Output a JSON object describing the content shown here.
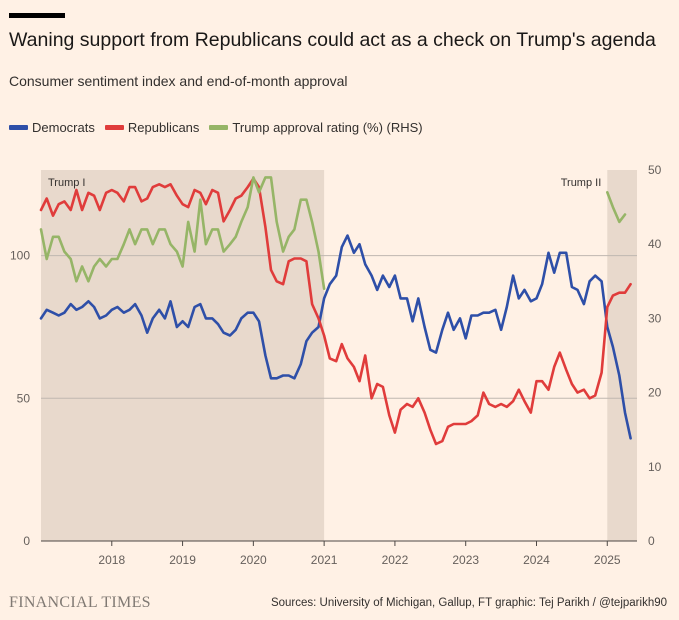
{
  "header": {
    "title": "Waning support from Republicans could act as a check on Trump's agenda",
    "subtitle": "Consumer sentiment index and end-of-month approval"
  },
  "footer": {
    "brand": "FINANCIAL TIMES",
    "source": "Sources: University of Michigan, Gallup, FT graphic: Tej Parikh / @tejparikh90"
  },
  "chart_data": {
    "type": "line",
    "title": "Waning support from Republicans could act as a check on Trump's agenda",
    "subtitle": "Consumer sentiment index and end-of-month approval",
    "xlim": [
      2017.0,
      2025.42
    ],
    "x_ticks": [
      2018,
      2019,
      2020,
      2021,
      2022,
      2023,
      2024,
      2025
    ],
    "x_tick_labels": [
      "2018",
      "2019",
      "2020",
      "2021",
      "2022",
      "2023",
      "2024",
      "2025"
    ],
    "y_left": {
      "lim": [
        0,
        130
      ],
      "ticks": [
        0,
        50,
        100
      ],
      "tick_labels": [
        "0",
        "50",
        "100"
      ]
    },
    "y_right": {
      "lim": [
        0,
        50
      ],
      "ticks": [
        0,
        10,
        20,
        30,
        40,
        50
      ],
      "tick_labels": [
        "0",
        "10",
        "20",
        "30",
        "40",
        "50"
      ]
    },
    "legend": {
      "position": "top-left"
    },
    "grid": true,
    "shaded_periods": [
      {
        "label": "Trump I",
        "start": 2017.0,
        "end": 2021.0
      },
      {
        "label": "Trump II",
        "start": 2025.0,
        "end": 2025.42
      }
    ],
    "colors": {
      "Democrats": "#2e4fa8",
      "Republicans": "#e03c3b",
      "Trump approval rating (%) (RHS)": "#96b567",
      "shade": "#e8d9cc",
      "grid": "#bfb7b0"
    },
    "series": [
      {
        "name": "Democrats",
        "axis": "left",
        "points": [
          [
            2017.0,
            78
          ],
          [
            2017.08,
            81
          ],
          [
            2017.17,
            80
          ],
          [
            2017.25,
            79
          ],
          [
            2017.33,
            80
          ],
          [
            2017.42,
            83
          ],
          [
            2017.5,
            81
          ],
          [
            2017.58,
            82
          ],
          [
            2017.67,
            84
          ],
          [
            2017.75,
            82
          ],
          [
            2017.83,
            78
          ],
          [
            2017.92,
            79
          ],
          [
            2018.0,
            81
          ],
          [
            2018.08,
            82
          ],
          [
            2018.17,
            80
          ],
          [
            2018.25,
            81
          ],
          [
            2018.33,
            83
          ],
          [
            2018.42,
            79
          ],
          [
            2018.5,
            73
          ],
          [
            2018.58,
            78
          ],
          [
            2018.67,
            81
          ],
          [
            2018.75,
            78
          ],
          [
            2018.83,
            84
          ],
          [
            2018.92,
            75
          ],
          [
            2019.0,
            77
          ],
          [
            2019.08,
            75
          ],
          [
            2019.17,
            82
          ],
          [
            2019.25,
            83
          ],
          [
            2019.33,
            78
          ],
          [
            2019.42,
            78
          ],
          [
            2019.5,
            76
          ],
          [
            2019.58,
            73
          ],
          [
            2019.67,
            72
          ],
          [
            2019.75,
            74
          ],
          [
            2019.83,
            78
          ],
          [
            2019.92,
            80
          ],
          [
            2020.0,
            80
          ],
          [
            2020.08,
            77
          ],
          [
            2020.17,
            65
          ],
          [
            2020.25,
            57
          ],
          [
            2020.33,
            57
          ],
          [
            2020.42,
            58
          ],
          [
            2020.5,
            58
          ],
          [
            2020.58,
            57
          ],
          [
            2020.67,
            62
          ],
          [
            2020.75,
            70
          ],
          [
            2020.83,
            73
          ],
          [
            2020.92,
            75
          ],
          [
            2021.0,
            85
          ],
          [
            2021.08,
            90
          ],
          [
            2021.17,
            93
          ],
          [
            2021.25,
            103
          ],
          [
            2021.33,
            107
          ],
          [
            2021.42,
            101
          ],
          [
            2021.5,
            104
          ],
          [
            2021.58,
            97
          ],
          [
            2021.67,
            93
          ],
          [
            2021.75,
            88
          ],
          [
            2021.83,
            93
          ],
          [
            2021.92,
            89
          ],
          [
            2022.0,
            93
          ],
          [
            2022.08,
            85
          ],
          [
            2022.17,
            85
          ],
          [
            2022.25,
            77
          ],
          [
            2022.33,
            85
          ],
          [
            2022.42,
            75
          ],
          [
            2022.5,
            67
          ],
          [
            2022.58,
            66
          ],
          [
            2022.67,
            74
          ],
          [
            2022.75,
            80
          ],
          [
            2022.83,
            74
          ],
          [
            2022.92,
            78
          ],
          [
            2023.0,
            71
          ],
          [
            2023.08,
            79
          ],
          [
            2023.17,
            79
          ],
          [
            2023.25,
            80
          ],
          [
            2023.33,
            80
          ],
          [
            2023.42,
            81
          ],
          [
            2023.5,
            74
          ],
          [
            2023.58,
            82
          ],
          [
            2023.67,
            93
          ],
          [
            2023.75,
            85
          ],
          [
            2023.83,
            88
          ],
          [
            2023.92,
            84
          ],
          [
            2024.0,
            85
          ],
          [
            2024.08,
            90
          ],
          [
            2024.17,
            101
          ],
          [
            2024.25,
            94
          ],
          [
            2024.33,
            101
          ],
          [
            2024.42,
            101
          ],
          [
            2024.5,
            89
          ],
          [
            2024.58,
            88
          ],
          [
            2024.67,
            83
          ],
          [
            2024.75,
            91
          ],
          [
            2024.83,
            93
          ],
          [
            2024.92,
            91
          ],
          [
            2025.0,
            75
          ],
          [
            2025.08,
            68
          ],
          [
            2025.17,
            58
          ],
          [
            2025.25,
            45
          ],
          [
            2025.33,
            36
          ]
        ]
      },
      {
        "name": "Republicans",
        "axis": "left",
        "points": [
          [
            2017.0,
            116
          ],
          [
            2017.08,
            120
          ],
          [
            2017.17,
            114
          ],
          [
            2017.25,
            118
          ],
          [
            2017.33,
            119
          ],
          [
            2017.42,
            116
          ],
          [
            2017.5,
            123
          ],
          [
            2017.58,
            116
          ],
          [
            2017.67,
            122
          ],
          [
            2017.75,
            121
          ],
          [
            2017.83,
            116
          ],
          [
            2017.92,
            122
          ],
          [
            2018.0,
            123
          ],
          [
            2018.08,
            122
          ],
          [
            2018.17,
            119
          ],
          [
            2018.25,
            124
          ],
          [
            2018.33,
            124
          ],
          [
            2018.42,
            119
          ],
          [
            2018.5,
            120
          ],
          [
            2018.58,
            124
          ],
          [
            2018.67,
            125
          ],
          [
            2018.75,
            124
          ],
          [
            2018.83,
            125
          ],
          [
            2018.92,
            121
          ],
          [
            2019.0,
            118
          ],
          [
            2019.08,
            117
          ],
          [
            2019.17,
            123
          ],
          [
            2019.25,
            122
          ],
          [
            2019.33,
            118
          ],
          [
            2019.42,
            123
          ],
          [
            2019.5,
            122
          ],
          [
            2019.58,
            112
          ],
          [
            2019.67,
            116
          ],
          [
            2019.75,
            120
          ],
          [
            2019.83,
            121
          ],
          [
            2019.92,
            124
          ],
          [
            2020.0,
            127
          ],
          [
            2020.08,
            124
          ],
          [
            2020.17,
            110
          ],
          [
            2020.25,
            95
          ],
          [
            2020.33,
            91
          ],
          [
            2020.42,
            90
          ],
          [
            2020.5,
            98
          ],
          [
            2020.58,
            99
          ],
          [
            2020.67,
            99
          ],
          [
            2020.75,
            98
          ],
          [
            2020.83,
            83
          ],
          [
            2020.92,
            78
          ],
          [
            2021.0,
            72
          ],
          [
            2021.08,
            64
          ],
          [
            2021.17,
            63
          ],
          [
            2021.25,
            69
          ],
          [
            2021.33,
            64
          ],
          [
            2021.42,
            61
          ],
          [
            2021.5,
            56
          ],
          [
            2021.58,
            65
          ],
          [
            2021.67,
            50
          ],
          [
            2021.75,
            55
          ],
          [
            2021.83,
            54
          ],
          [
            2021.92,
            44
          ],
          [
            2022.0,
            38
          ],
          [
            2022.08,
            46
          ],
          [
            2022.17,
            48
          ],
          [
            2022.25,
            47
          ],
          [
            2022.33,
            50
          ],
          [
            2022.42,
            45
          ],
          [
            2022.5,
            39
          ],
          [
            2022.58,
            34
          ],
          [
            2022.67,
            35
          ],
          [
            2022.75,
            40
          ],
          [
            2022.83,
            41
          ],
          [
            2022.92,
            41
          ],
          [
            2023.0,
            41
          ],
          [
            2023.08,
            42
          ],
          [
            2023.17,
            44
          ],
          [
            2023.25,
            52
          ],
          [
            2023.33,
            48
          ],
          [
            2023.42,
            47
          ],
          [
            2023.5,
            48
          ],
          [
            2023.58,
            47
          ],
          [
            2023.67,
            49
          ],
          [
            2023.75,
            53
          ],
          [
            2023.83,
            49
          ],
          [
            2023.92,
            45
          ],
          [
            2024.0,
            56
          ],
          [
            2024.08,
            56
          ],
          [
            2024.17,
            53
          ],
          [
            2024.25,
            61
          ],
          [
            2024.33,
            66
          ],
          [
            2024.42,
            60
          ],
          [
            2024.5,
            55
          ],
          [
            2024.58,
            52
          ],
          [
            2024.67,
            53
          ],
          [
            2024.75,
            50
          ],
          [
            2024.83,
            51
          ],
          [
            2024.92,
            59
          ],
          [
            2025.0,
            82
          ],
          [
            2025.08,
            86
          ],
          [
            2025.17,
            87
          ],
          [
            2025.25,
            87
          ],
          [
            2025.33,
            90
          ]
        ]
      },
      {
        "name": "Trump approval rating (%) (RHS)",
        "axis": "right",
        "points": [
          [
            2017.0,
            42
          ],
          [
            2017.08,
            38
          ],
          [
            2017.17,
            41
          ],
          [
            2017.25,
            41
          ],
          [
            2017.33,
            39
          ],
          [
            2017.42,
            38
          ],
          [
            2017.5,
            35
          ],
          [
            2017.58,
            37
          ],
          [
            2017.67,
            35
          ],
          [
            2017.75,
            37
          ],
          [
            2017.83,
            38
          ],
          [
            2017.92,
            37
          ],
          [
            2018.0,
            38
          ],
          [
            2018.08,
            38
          ],
          [
            2018.17,
            40
          ],
          [
            2018.25,
            42
          ],
          [
            2018.33,
            40
          ],
          [
            2018.42,
            42
          ],
          [
            2018.5,
            42
          ],
          [
            2018.58,
            40
          ],
          [
            2018.67,
            42
          ],
          [
            2018.75,
            42
          ],
          [
            2018.83,
            40
          ],
          [
            2018.92,
            39
          ],
          [
            2019.0,
            37
          ],
          [
            2019.08,
            43
          ],
          [
            2019.17,
            39
          ],
          [
            2019.25,
            46
          ],
          [
            2019.33,
            40
          ],
          [
            2019.42,
            42
          ],
          [
            2019.5,
            42
          ],
          [
            2019.58,
            39
          ],
          [
            2019.67,
            40
          ],
          [
            2019.75,
            41
          ],
          [
            2019.83,
            43
          ],
          [
            2019.92,
            45
          ],
          [
            2020.0,
            49
          ],
          [
            2020.08,
            47
          ],
          [
            2020.17,
            49
          ],
          [
            2020.25,
            49
          ],
          [
            2020.33,
            43
          ],
          [
            2020.42,
            39
          ],
          [
            2020.5,
            41
          ],
          [
            2020.58,
            42
          ],
          [
            2020.67,
            46
          ],
          [
            2020.75,
            46
          ],
          [
            2020.83,
            43
          ],
          [
            2020.92,
            39
          ],
          [
            2021.0,
            34
          ],
          [
            2025.0,
            47
          ],
          [
            2025.08,
            45
          ],
          [
            2025.17,
            43
          ],
          [
            2025.25,
            44
          ]
        ]
      }
    ]
  }
}
